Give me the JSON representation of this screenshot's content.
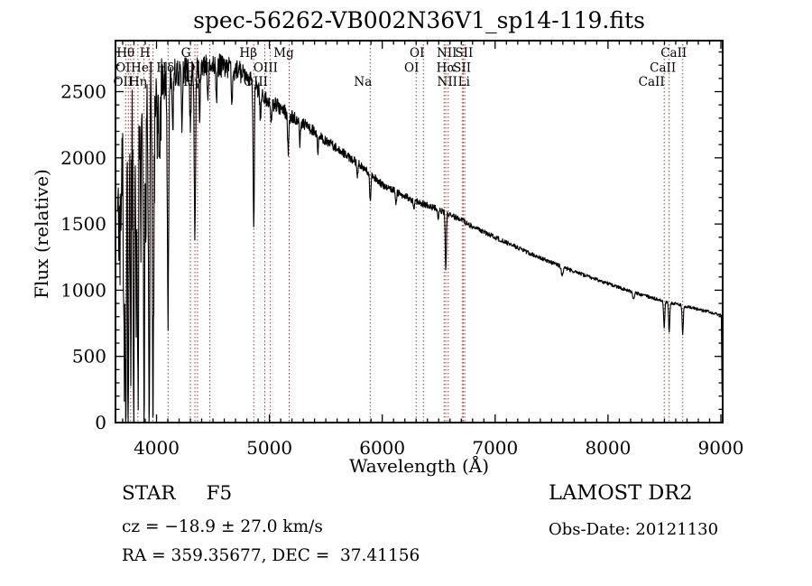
{
  "title": "spec-56262-VB002N36V1_sp14-119.fits",
  "annotations": {
    "object_class": "STAR",
    "subclass": "F5",
    "cz": "cz = −18.9 ± 27.0 km/s",
    "radec": "RA = 359.35677, DEC =  37.41156",
    "survey": "LAMOST DR2",
    "obs_date": "Obs-Date: 20121130"
  },
  "colors": {
    "background": "#ffffff",
    "spectrum": "#000000",
    "frame": "#000000",
    "line_marker": "#9a3f39",
    "text": "#000000"
  },
  "chart_data": {
    "type": "line",
    "title": "spec-56262-VB002N36V1_sp14-119.fits",
    "xlabel": "Wavelength (Å)",
    "ylabel": "Flux (relative)",
    "xlim": [
      3636,
      9016
    ],
    "ylim": [
      0,
      2885
    ],
    "grid": false,
    "x_ticks": [
      4000,
      5000,
      6000,
      7000,
      8000,
      9000
    ],
    "y_ticks": [
      0,
      500,
      1000,
      1500,
      2000,
      2500
    ],
    "x_minor_step": 100,
    "y_minor_step": 100,
    "series": {
      "name": "flux",
      "start": 3655,
      "end": 9012,
      "step": 3,
      "seed": 20121130,
      "spike_region_max": 4060,
      "spike_probability": 0.2,
      "continuum": [
        [
          3655,
          1500
        ],
        [
          3700,
          1900
        ],
        [
          3750,
          2150
        ],
        [
          3800,
          2320
        ],
        [
          3850,
          2420
        ],
        [
          3900,
          2480
        ],
        [
          3950,
          2520
        ],
        [
          4000,
          2560
        ],
        [
          4100,
          2620
        ],
        [
          4250,
          2660
        ],
        [
          4400,
          2690
        ],
        [
          4550,
          2700
        ],
        [
          4700,
          2665
        ],
        [
          4800,
          2625
        ],
        [
          4900,
          2510
        ],
        [
          5000,
          2430
        ],
        [
          5100,
          2370
        ],
        [
          5200,
          2310
        ],
        [
          5300,
          2260
        ],
        [
          5400,
          2200
        ],
        [
          5500,
          2130
        ],
        [
          5600,
          2070
        ],
        [
          5700,
          2010
        ],
        [
          5800,
          1950
        ],
        [
          5900,
          1880
        ],
        [
          6000,
          1795
        ],
        [
          6100,
          1755
        ],
        [
          6200,
          1710
        ],
        [
          6300,
          1670
        ],
        [
          6400,
          1640
        ],
        [
          6500,
          1610
        ],
        [
          6600,
          1570
        ],
        [
          6700,
          1530
        ],
        [
          6800,
          1480
        ],
        [
          6900,
          1440
        ],
        [
          7000,
          1400
        ],
        [
          7100,
          1360
        ],
        [
          7200,
          1320
        ],
        [
          7300,
          1280
        ],
        [
          7400,
          1245
        ],
        [
          7500,
          1210
        ],
        [
          7600,
          1175
        ],
        [
          7700,
          1140
        ],
        [
          7800,
          1110
        ],
        [
          7900,
          1080
        ],
        [
          8000,
          1050
        ],
        [
          8100,
          1020
        ],
        [
          8200,
          990
        ],
        [
          8300,
          965
        ],
        [
          8400,
          940
        ],
        [
          8500,
          915
        ],
        [
          8600,
          895
        ],
        [
          8700,
          875
        ],
        [
          8800,
          855
        ],
        [
          8900,
          835
        ],
        [
          9000,
          815
        ],
        [
          9004,
          805
        ],
        [
          9008,
          420
        ],
        [
          9012,
          35
        ]
      ],
      "absorption_lines": [
        [
          3712,
          1500,
          5
        ],
        [
          3727,
          1900,
          5
        ],
        [
          3750,
          2000,
          5
        ],
        [
          3771,
          1800,
          5
        ],
        [
          3798,
          2150,
          5
        ],
        [
          3820,
          1300,
          4
        ],
        [
          3835,
          2300,
          5
        ],
        [
          3860,
          1100,
          4
        ],
        [
          3889,
          2350,
          6
        ],
        [
          3905,
          900,
          4
        ],
        [
          3934,
          2480,
          6
        ],
        [
          3969,
          2420,
          6
        ],
        [
          4026,
          800,
          4
        ],
        [
          4102,
          1800,
          6
        ],
        [
          4144,
          450,
          4
        ],
        [
          4226,
          500,
          4
        ],
        [
          4300,
          420,
          6
        ],
        [
          4340,
          1250,
          6
        ],
        [
          4383,
          450,
          4
        ],
        [
          4455,
          350,
          4
        ],
        [
          4531,
          320,
          4
        ],
        [
          4668,
          300,
          4
        ],
        [
          4861,
          1080,
          5
        ],
        [
          4920,
          220,
          4
        ],
        [
          5015,
          180,
          4
        ],
        [
          5167,
          280,
          6
        ],
        [
          5270,
          180,
          5
        ],
        [
          5430,
          120,
          5
        ],
        [
          5780,
          100,
          5
        ],
        [
          5893,
          200,
          6
        ],
        [
          6122,
          90,
          5
        ],
        [
          6280,
          70,
          5
        ],
        [
          6495,
          80,
          5
        ],
        [
          6563,
          420,
          5
        ],
        [
          7594,
          70,
          7
        ],
        [
          8226,
          60,
          6
        ],
        [
          8498,
          200,
          5
        ],
        [
          8542,
          230,
          5
        ],
        [
          8662,
          215,
          5
        ]
      ],
      "noise_amplitude": [
        [
          3655,
          500
        ],
        [
          3750,
          430
        ],
        [
          3850,
          380
        ],
        [
          3950,
          330
        ],
        [
          4050,
          200
        ],
        [
          4150,
          110
        ],
        [
          4300,
          95
        ],
        [
          4500,
          90
        ],
        [
          4700,
          85
        ],
        [
          4900,
          70
        ],
        [
          5100,
          55
        ],
        [
          5300,
          45
        ],
        [
          5600,
          35
        ],
        [
          6000,
          28
        ],
        [
          6500,
          22
        ],
        [
          7000,
          18
        ],
        [
          7500,
          15
        ],
        [
          8000,
          13
        ],
        [
          8500,
          12
        ],
        [
          9000,
          12
        ]
      ]
    },
    "spectral_line_markers": {
      "wavelengths": [
        3727,
        3750,
        3771,
        3798,
        3835,
        3889,
        3934,
        3969,
        4102,
        4300,
        4340,
        4363,
        4472,
        4861,
        4959,
        5007,
        5175,
        5893,
        6300,
        6364,
        6548,
        6563,
        6584,
        6708,
        6717,
        6731,
        8498,
        8542,
        8662
      ],
      "labels": [
        {
          "text": "Hθ",
          "at": 3798,
          "dx": -9,
          "row": 1
        },
        {
          "text": "H",
          "at": 3889,
          "dx": 1,
          "row": 1
        },
        {
          "text": "G",
          "at": 4300,
          "dx": -5,
          "row": 1
        },
        {
          "text": "Hβ",
          "at": 4861,
          "dx": -6,
          "row": 1
        },
        {
          "text": "Mg",
          "at": 5175,
          "dx": -6,
          "row": 1
        },
        {
          "text": "OI",
          "at": 6364,
          "dx": -7,
          "row": 1
        },
        {
          "text": "NII",
          "at": 6548,
          "dx": 3,
          "row": 1
        },
        {
          "text": "SII",
          "at": 6717,
          "dx": 1,
          "row": 1
        },
        {
          "text": "CaII",
          "at": 8662,
          "dx": -10,
          "row": 1
        },
        {
          "text": "OI",
          "at": 3727,
          "dx": -3,
          "row": 2
        },
        {
          "text": "HeI",
          "at": 3889,
          "dx": -2,
          "row": 2
        },
        {
          "text": "Hδ",
          "at": 4102,
          "dx": -3,
          "row": 2
        },
        {
          "text": "OIII",
          "at": 4363,
          "dx": 0,
          "row": 2
        },
        {
          "text": "OIII",
          "at": 4959,
          "dx": 1,
          "row": 2
        },
        {
          "text": "OI",
          "at": 6300,
          "dx": -5,
          "row": 2
        },
        {
          "text": "Hα",
          "at": 6563,
          "dx": 0,
          "row": 2
        },
        {
          "text": "SII",
          "at": 6731,
          "dx": -3,
          "row": 2
        },
        {
          "text": "CaII",
          "at": 8542,
          "dx": -7,
          "row": 2
        },
        {
          "text": "OII",
          "at": 3727,
          "dx": -3,
          "row": 3
        },
        {
          "text": "Hη",
          "at": 3835,
          "dx": 0,
          "row": 3
        },
        {
          "text": "Hγ",
          "at": 4340,
          "dx": -3,
          "row": 3
        },
        {
          "text": "OIII",
          "at": 5007,
          "dx": -16,
          "row": 3
        },
        {
          "text": "Na",
          "at": 5893,
          "dx": -8,
          "row": 3
        },
        {
          "text": "NII",
          "at": 6584,
          "dx": -1,
          "row": 3
        },
        {
          "text": "Li",
          "at": 6708,
          "dx": 2,
          "row": 3
        },
        {
          "text": "CaII",
          "at": 8498,
          "dx": -14,
          "row": 3
        }
      ]
    }
  }
}
